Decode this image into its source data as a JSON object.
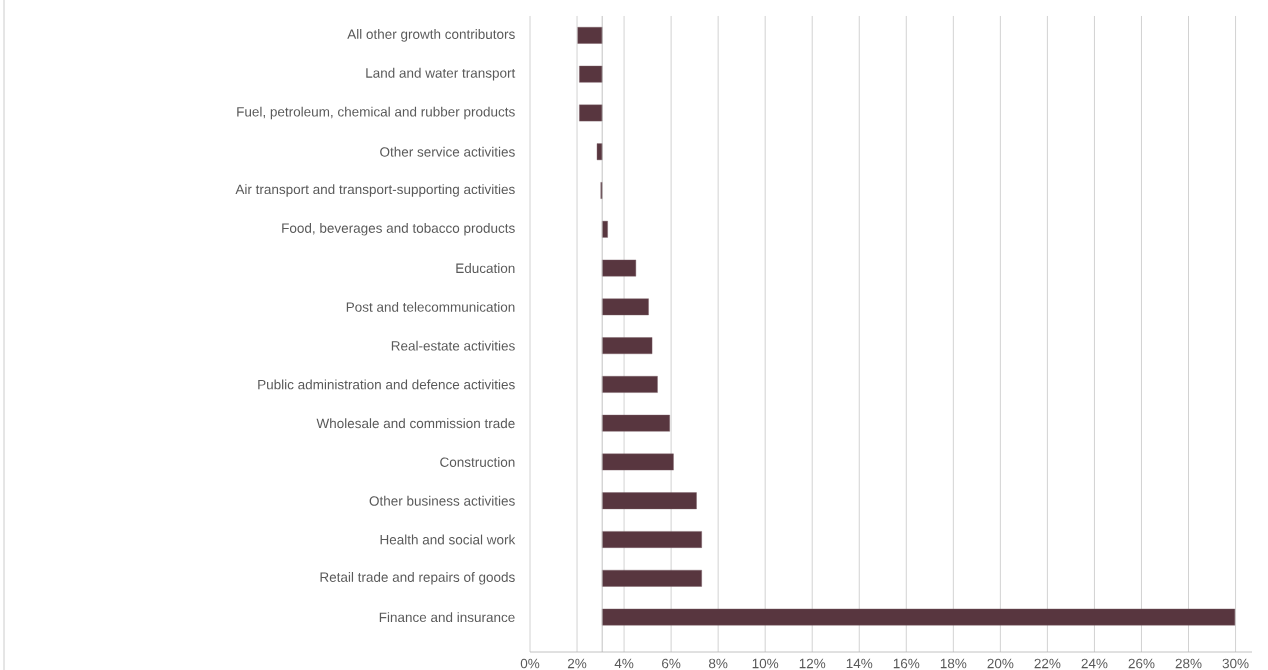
{
  "chart_data": {
    "type": "bar",
    "orientation": "horizontal",
    "categories": [
      "All other growth contributors",
      "Land and water transport",
      "Fuel, petroleum, chemical and rubber products",
      "Other service activities",
      "Air transport and transport-supporting activities",
      "Food, beverages and tobacco products",
      "Education",
      "Post and telecommunication",
      "Real-estate activities",
      "Public administration and defence activities",
      "Wholesale and commission trade",
      "Construction",
      "Other business activities",
      "Health and social work",
      "Retail trade and repairs of goods",
      "Finance and insurance"
    ],
    "base": [
      3.07,
      3.07,
      3.07,
      3.07,
      3.07,
      3.07,
      3.07,
      3.07,
      3.07,
      3.07,
      3.07,
      3.07,
      3.07,
      3.07,
      3.07,
      3.07
    ],
    "values": [
      -1.04,
      -0.97,
      -0.97,
      -0.22,
      -0.06,
      0.23,
      1.43,
      1.97,
      2.12,
      2.35,
      2.87,
      3.03,
      4.01,
      4.23,
      4.23,
      26.9
    ],
    "color": "#58363f",
    "xlim": [
      0,
      30.7
    ],
    "xticks": [
      {
        "value": 0,
        "label": "0%"
      },
      {
        "value": 2,
        "label": "2%"
      },
      {
        "value": 4,
        "label": "4%"
      },
      {
        "value": 6,
        "label": "6%"
      },
      {
        "value": 8,
        "label": "8%"
      },
      {
        "value": 10,
        "label": "10%"
      },
      {
        "value": 12,
        "label": "12%"
      },
      {
        "value": 14,
        "label": "14%"
      },
      {
        "value": 16,
        "label": "16%"
      },
      {
        "value": 18,
        "label": "18%"
      },
      {
        "value": 20,
        "label": "20%"
      },
      {
        "value": 22,
        "label": "22%"
      },
      {
        "value": 24,
        "label": "24%"
      },
      {
        "value": 26,
        "label": "26%"
      },
      {
        "value": 28,
        "label": "28%"
      },
      {
        "value": 30,
        "label": "30%"
      }
    ],
    "ref_lines": [
      {
        "axis": "x",
        "value": 3.07,
        "color": "#b2b2b2"
      }
    ],
    "grid": "x"
  }
}
